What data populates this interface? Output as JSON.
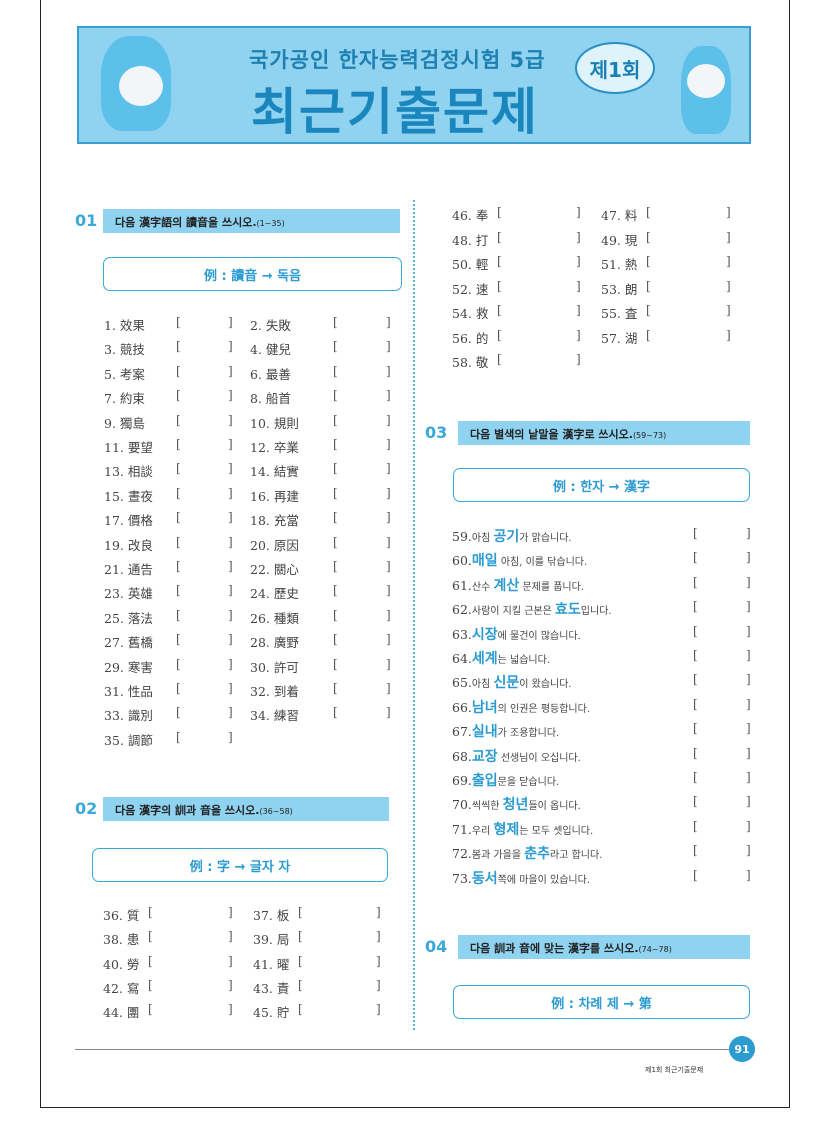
{
  "header": {
    "subtitle": "국가공인 한자능력검정시험 5급",
    "title": "최근기출문제",
    "round_badge": "제1회"
  },
  "sections": [
    {
      "num": "01",
      "instruction": "다음 漢字語의 讀音을 쓰시오.",
      "range": "(1~35)",
      "example": "例 : 讀音 → 독음",
      "items": [
        "1. 效果",
        "2. 失敗",
        "3. 競技",
        "4. 健兒",
        "5. 考案",
        "6. 最善",
        "7. 約束",
        "8. 船首",
        "9. 獨島",
        "10. 規則",
        "11. 要望",
        "12. 卒業",
        "13. 相談",
        "14. 結實",
        "15. 晝夜",
        "16. 再建",
        "17. 價格",
        "18. 充當",
        "19. 改良",
        "20. 原因",
        "21. 通告",
        "22. 關心",
        "23. 英雄",
        "24. 歷史",
        "25. 落法",
        "26. 種類",
        "27. 舊橋",
        "28. 廣野",
        "29. 寒害",
        "30. 許可",
        "31. 性品",
        "32. 到着",
        "33. 識別",
        "34. 練習",
        "35. 調節"
      ]
    },
    {
      "num": "02",
      "instruction": "다음 漢字의 訓과 音을 쓰시오.",
      "range": "(36~58)",
      "example": "例 : 字 → 글자 자",
      "items": [
        "36. 質",
        "37. 板",
        "38. 患",
        "39. 局",
        "40. 勞",
        "41. 曜",
        "42. 寫",
        "43. 責",
        "44. 團",
        "45. 貯",
        "46. 奉",
        "47. 料",
        "48. 打",
        "49. 現",
        "50. 輕",
        "51. 熱",
        "52. 速",
        "53. 朗",
        "54. 救",
        "55. 査",
        "56. 的",
        "57. 湖",
        "58. 敬"
      ]
    },
    {
      "num": "03",
      "instruction": "다음 별색의 낱말을 漢字로 쓰시오.",
      "range": "(59~73)",
      "example": "例 : 한자 → 漢字",
      "items": [
        {
          "n": "59.",
          "pre": "아침 ",
          "hl": "공기",
          "post": "가 맑습니다."
        },
        {
          "n": "60.",
          "pre": "",
          "hl": "매일",
          "post": " 아침, 이를 닦습니다."
        },
        {
          "n": "61.",
          "pre": "산수 ",
          "hl": "계산",
          "post": " 문제를 풉니다."
        },
        {
          "n": "62.",
          "pre": "사람이 지킬 근본은 ",
          "hl": "효도",
          "post": "입니다."
        },
        {
          "n": "63.",
          "pre": "",
          "hl": "시장",
          "post": "에 물건이 많습니다."
        },
        {
          "n": "64.",
          "pre": "",
          "hl": "세계",
          "post": "는 넓습니다."
        },
        {
          "n": "65.",
          "pre": "아침 ",
          "hl": "신문",
          "post": "이 왔습니다."
        },
        {
          "n": "66.",
          "pre": "",
          "hl": "남녀",
          "post": "의 인권은 평등합니다."
        },
        {
          "n": "67.",
          "pre": "",
          "hl": "실내",
          "post": "가 조용합니다."
        },
        {
          "n": "68.",
          "pre": "",
          "hl": "교장",
          "post": " 선생님이 오십니다."
        },
        {
          "n": "69.",
          "pre": "",
          "hl": "출입",
          "post": "문을 닫습니다."
        },
        {
          "n": "70.",
          "pre": "씩씩한 ",
          "hl": "청년",
          "post": "들이 옵니다."
        },
        {
          "n": "71.",
          "pre": "우리 ",
          "hl": "형제",
          "post": "는 모두 셋입니다."
        },
        {
          "n": "72.",
          "pre": "봄과 가을을 ",
          "hl": "춘추",
          "post": "라고 합니다."
        },
        {
          "n": "73.",
          "pre": "",
          "hl": "동서",
          "post": "쪽에 마을이 있습니다."
        }
      ]
    },
    {
      "num": "04",
      "instruction": "다음 訓과 音에 맞는 漢字를 쓰시오.",
      "range": "(74~78)",
      "example": "例 : 차례 제 → 第"
    }
  ],
  "bracket_open": "[",
  "bracket_close": "]",
  "footer": {
    "page_number": "91",
    "caption": "제1회 최근기출문제"
  },
  "colors": {
    "accent": "#2b9bd0",
    "bar": "#8fd3f0"
  }
}
